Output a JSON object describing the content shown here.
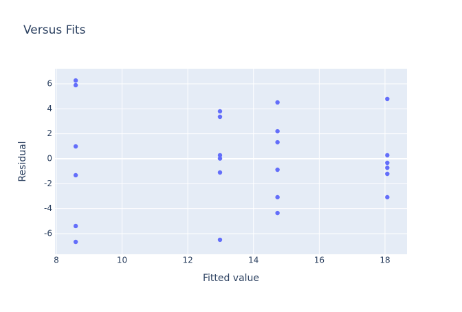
{
  "chart_data": {
    "type": "scatter",
    "title": "Versus Fits",
    "x_label": "Fitted value",
    "y_label": "Residual",
    "series": [
      {
        "color": "#636efa",
        "x": [
          8.59,
          8.59,
          8.59,
          8.59,
          8.59,
          8.59,
          12.98,
          12.98,
          12.98,
          12.98,
          12.98,
          12.98,
          14.73,
          14.73,
          14.73,
          14.73,
          14.73,
          14.73,
          18.07,
          18.07,
          18.07,
          18.07,
          18.07,
          18.07
        ],
        "values": [
          6.27,
          5.89,
          0.99,
          -1.32,
          -5.39,
          -6.66,
          3.8,
          3.36,
          0.28,
          0.02,
          -1.1,
          -6.49,
          4.51,
          2.2,
          1.32,
          -0.88,
          -3.08,
          -4.35,
          4.79,
          0.28,
          -0.33,
          -0.72,
          -1.21,
          -3.08
        ]
      }
    ],
    "xlim": [
      7.96,
      18.67
    ],
    "ylim": [
      -7.65,
      7.21
    ],
    "xticks": [
      8,
      10,
      12,
      14,
      16,
      18
    ],
    "yticks": [
      -6,
      -4,
      -2,
      0,
      2,
      4,
      6
    ],
    "grid": true,
    "zeroline": true
  }
}
